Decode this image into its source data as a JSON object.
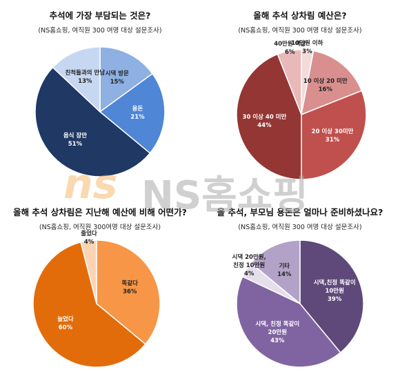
{
  "watermark": {
    "logo": "ns",
    "text": "NS홈쇼핑"
  },
  "chart_data": [
    {
      "type": "pie",
      "title": "추석에 가장 부담되는 것은?",
      "subtitle": "(NS홈쇼핑, 여직원 300 여명 대상 설문조사)",
      "categories": [
        "시댁 방문",
        "용돈",
        "음식 장만",
        "친척들과의 만남"
      ],
      "values": [
        15,
        21,
        51,
        13
      ],
      "value_labels": [
        "15%",
        "21%",
        "51%",
        "13%"
      ],
      "colors": [
        "#8eb0e2",
        "#4f86d6",
        "#1f3864",
        "#c6d7f1"
      ]
    },
    {
      "type": "pie",
      "title": "올해 추석 상차림 예산은?",
      "subtitle": "(NS홈쇼핑, 여직원 300 여명 대상 설문조사)",
      "categories": [
        "10만원 이하",
        "10 이상 20 미만",
        "20 이상 30미만",
        "30 이상 40 미만",
        "40만원 이상"
      ],
      "values": [
        3,
        16,
        31,
        44,
        6
      ],
      "value_labels": [
        "3%",
        "16%",
        "31%",
        "44%",
        "6%"
      ],
      "colors": [
        "#f4dada",
        "#d98f8e",
        "#c0504d",
        "#943634",
        "#e8b9b8"
      ]
    },
    {
      "type": "pie",
      "title": "올해 추석 상차림은 지난해 예산에 비해 어떤가?",
      "subtitle": "(NS홈쇼핑, 여직원 300여명 대상 설문조사)",
      "categories": [
        "똑같다",
        "늘었다",
        "줄었다"
      ],
      "values": [
        36,
        60,
        4
      ],
      "value_labels": [
        "36%",
        "60%",
        "4%"
      ],
      "colors": [
        "#f79646",
        "#e36c0a",
        "#fbd4b4"
      ]
    },
    {
      "type": "pie",
      "title": "올 추석, 부모님 용돈은 얼마나 준비하셨나요?",
      "subtitle": "(NS홈쇼핑, 여직원 300 여명 대상 설문조사)",
      "categories": [
        "시댁,친정 똑같이\n10만원",
        "시댁, 친정 똑같이\n20만원",
        "시댁 20만원,\n친정 10만원",
        "기타"
      ],
      "values": [
        39,
        43,
        4,
        14
      ],
      "value_labels": [
        "39%",
        "43%",
        "4%",
        "14%"
      ],
      "colors": [
        "#5f497a",
        "#8064a2",
        "#e5dfec",
        "#b3a2c7"
      ]
    }
  ]
}
